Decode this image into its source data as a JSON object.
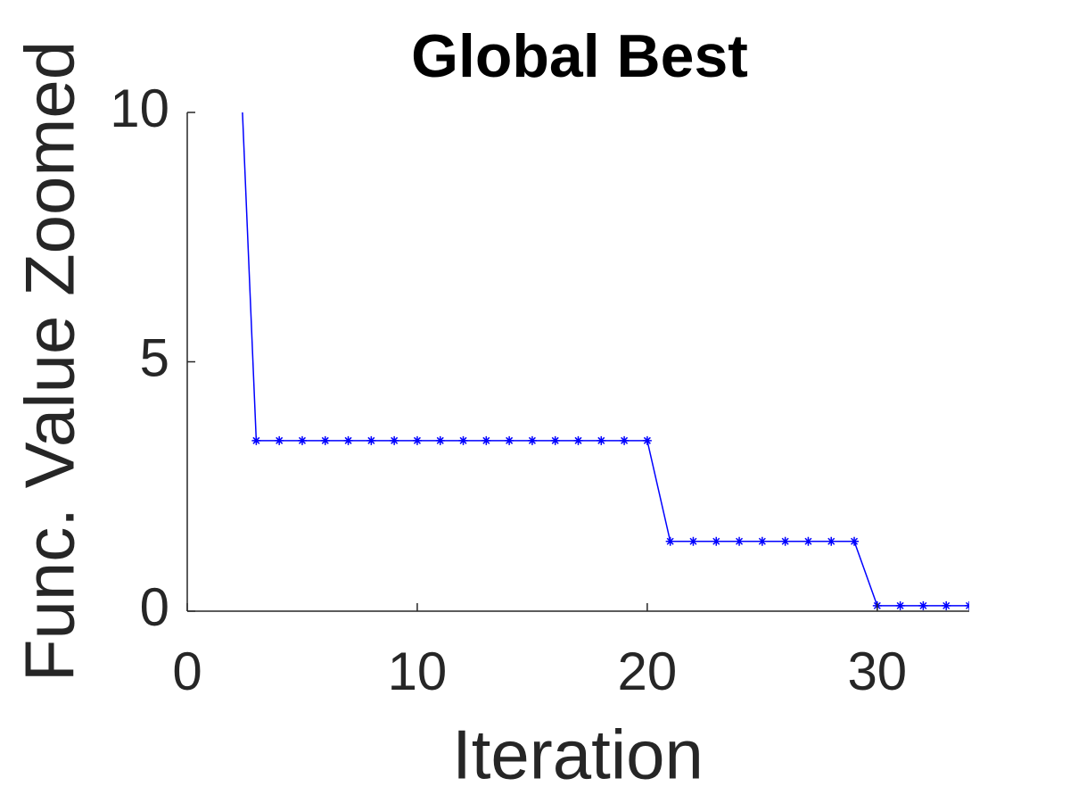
{
  "chart_data": {
    "type": "line",
    "title": "Global Best",
    "xlabel": "Iteration",
    "ylabel": "Func. Value Zoomed",
    "x": [
      2,
      3,
      4,
      5,
      6,
      7,
      8,
      9,
      10,
      11,
      12,
      13,
      14,
      15,
      16,
      17,
      18,
      19,
      20,
      21,
      22,
      23,
      24,
      25,
      26,
      27,
      28,
      29,
      30,
      31,
      32,
      33,
      34
    ],
    "series": [
      {
        "name": "Global Best",
        "color": "#0000ff",
        "values": [
          14.4,
          3.42,
          3.42,
          3.42,
          3.42,
          3.42,
          3.42,
          3.42,
          3.42,
          3.42,
          3.42,
          3.42,
          3.42,
          3.42,
          3.42,
          3.42,
          3.42,
          3.42,
          3.42,
          1.4,
          1.4,
          1.4,
          1.4,
          1.4,
          1.4,
          1.4,
          1.4,
          1.4,
          0.11,
          0.11,
          0.11,
          0.11,
          0.11
        ]
      }
    ],
    "xlim": [
      0,
      34
    ],
    "ylim": [
      0,
      10
    ],
    "xticks": [
      0,
      10,
      20,
      30
    ],
    "yticks": [
      0,
      5,
      10
    ],
    "grid": false
  }
}
